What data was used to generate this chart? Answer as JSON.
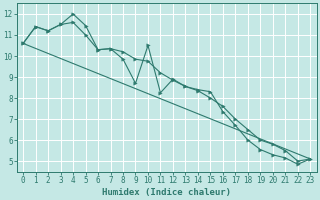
{
  "xlabel": "Humidex (Indice chaleur)",
  "bg_color": "#c5e8e5",
  "grid_color": "#ffffff",
  "line_color": "#2e7a6e",
  "xlim": [
    -0.5,
    23.5
  ],
  "ylim": [
    4.5,
    12.5
  ],
  "xticks": [
    0,
    1,
    2,
    3,
    4,
    5,
    6,
    7,
    8,
    9,
    10,
    11,
    12,
    13,
    14,
    15,
    16,
    17,
    18,
    19,
    20,
    21,
    22,
    23
  ],
  "yticks": [
    5,
    6,
    7,
    8,
    9,
    10,
    11,
    12
  ],
  "series1_x": [
    0,
    1,
    2,
    3,
    4,
    5,
    6,
    7,
    8,
    9,
    10,
    11,
    12,
    13,
    14,
    15,
    16,
    17,
    18,
    19,
    20,
    21,
    22,
    23
  ],
  "series1_y": [
    10.6,
    11.4,
    11.2,
    11.5,
    12.0,
    11.45,
    10.3,
    10.35,
    9.85,
    8.7,
    10.5,
    8.25,
    8.9,
    8.55,
    8.4,
    8.3,
    7.35,
    6.7,
    6.0,
    5.55,
    5.3,
    5.15,
    4.85,
    5.1
  ],
  "series2_x": [
    0,
    1,
    2,
    3,
    4,
    5,
    6,
    7,
    8,
    9,
    10,
    11,
    12,
    13,
    14,
    15,
    16,
    17,
    18,
    19,
    20,
    21,
    22,
    23
  ],
  "series2_y": [
    10.6,
    11.4,
    11.2,
    11.5,
    11.6,
    11.0,
    10.3,
    10.35,
    10.2,
    9.85,
    9.75,
    9.2,
    8.85,
    8.55,
    8.35,
    8.0,
    7.6,
    7.0,
    6.5,
    6.0,
    5.8,
    5.5,
    5.0,
    5.1
  ],
  "trend_x": [
    0,
    23
  ],
  "trend_y": [
    10.6,
    5.1
  ]
}
